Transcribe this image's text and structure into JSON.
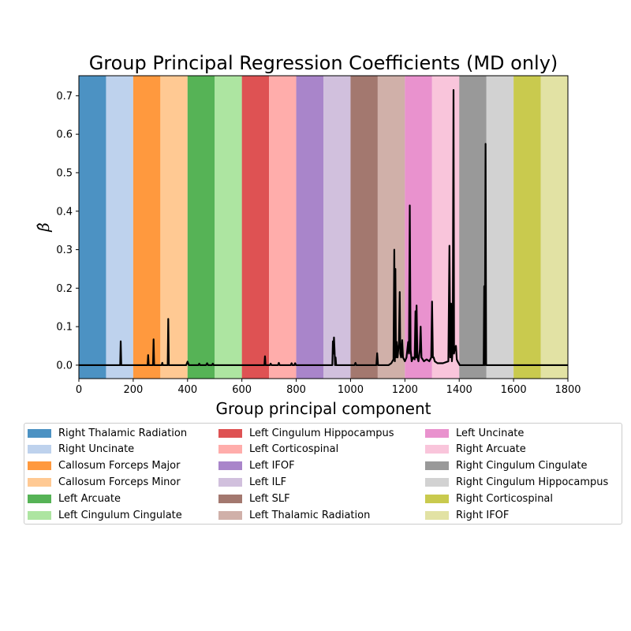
{
  "chart_data": {
    "type": "line",
    "title": "Group Principal Regression Coefficients (MD only)",
    "xlabel": "Group principal component",
    "ylabel": "β̂",
    "xlim": [
      0,
      1800
    ],
    "ylim": [
      -0.035,
      0.752
    ],
    "xticks": [
      "0",
      "200",
      "400",
      "600",
      "800",
      "1000",
      "1200",
      "1400",
      "1600",
      "1800"
    ],
    "yticks": [
      "0.0",
      "0.1",
      "0.2",
      "0.3",
      "0.4",
      "0.5",
      "0.6",
      "0.7"
    ],
    "grid": false,
    "legend_position": "bottom",
    "legend_columns": 3,
    "bands": [
      {
        "name": "Right Thalamic Radiation",
        "x0": 0,
        "x1": 100,
        "color": "#1f77b4",
        "alpha": 0.8
      },
      {
        "name": "Right Uncinate",
        "x0": 100,
        "x1": 200,
        "color": "#aec7e8",
        "alpha": 0.8
      },
      {
        "name": "Callosum Forceps Major",
        "x0": 200,
        "x1": 300,
        "color": "#ff7f0e",
        "alpha": 0.8
      },
      {
        "name": "Callosum Forceps Minor",
        "x0": 300,
        "x1": 400,
        "color": "#ffbb78",
        "alpha": 0.8
      },
      {
        "name": "Left Arcuate",
        "x0": 400,
        "x1": 500,
        "color": "#2ca02c",
        "alpha": 0.8
      },
      {
        "name": "Left Cingulum Cingulate",
        "x0": 500,
        "x1": 600,
        "color": "#98df8a",
        "alpha": 0.8
      },
      {
        "name": "Left Cingulum Hippocampus",
        "x0": 600,
        "x1": 700,
        "color": "#d62728",
        "alpha": 0.8
      },
      {
        "name": "Left Corticospinal",
        "x0": 700,
        "x1": 800,
        "color": "#ff9896",
        "alpha": 0.8
      },
      {
        "name": "Left IFOF",
        "x0": 800,
        "x1": 900,
        "color": "#9467bd",
        "alpha": 0.8
      },
      {
        "name": "Left ILF",
        "x0": 900,
        "x1": 1000,
        "color": "#c5b0d5",
        "alpha": 0.8
      },
      {
        "name": "Left SLF",
        "x0": 1000,
        "x1": 1100,
        "color": "#8c564b",
        "alpha": 0.8
      },
      {
        "name": "Left Thalamic Radiation",
        "x0": 1100,
        "x1": 1200,
        "color": "#c49c94",
        "alpha": 0.8
      },
      {
        "name": "Left Uncinate",
        "x0": 1200,
        "x1": 1300,
        "color": "#e377c2",
        "alpha": 0.8
      },
      {
        "name": "Right Arcuate",
        "x0": 1300,
        "x1": 1400,
        "color": "#f7b6d2",
        "alpha": 0.8
      },
      {
        "name": "Right Cingulum Cingulate",
        "x0": 1400,
        "x1": 1500,
        "color": "#7f7f7f",
        "alpha": 0.8
      },
      {
        "name": "Right Cingulum Hippocampus",
        "x0": 1500,
        "x1": 1600,
        "color": "#c7c7c7",
        "alpha": 0.8
      },
      {
        "name": "Right Corticospinal",
        "x0": 1600,
        "x1": 1700,
        "color": "#bcbd22",
        "alpha": 0.8
      },
      {
        "name": "Right IFOF",
        "x0": 1700,
        "x1": 1800,
        "color": "#dbdb8d",
        "alpha": 0.8
      }
    ],
    "series": [
      {
        "color": "#000000",
        "points": [
          [
            0,
            0.0
          ],
          [
            152,
            0.0
          ],
          [
            154,
            0.062
          ],
          [
            156,
            0.0
          ],
          [
            253,
            0.0
          ],
          [
            255,
            0.026
          ],
          [
            257,
            0.0
          ],
          [
            273,
            0.0
          ],
          [
            275,
            0.067
          ],
          [
            277,
            0.0
          ],
          [
            305,
            0.0
          ],
          [
            307,
            0.006
          ],
          [
            309,
            0.0
          ],
          [
            327,
            0.0
          ],
          [
            329,
            0.12
          ],
          [
            331,
            0.0
          ],
          [
            395,
            0.0
          ],
          [
            400,
            0.009
          ],
          [
            405,
            0.0
          ],
          [
            440,
            0.0
          ],
          [
            443,
            0.004
          ],
          [
            446,
            0.0
          ],
          [
            468,
            0.0
          ],
          [
            472,
            0.005
          ],
          [
            476,
            0.0
          ],
          [
            490,
            0.0
          ],
          [
            493,
            0.004
          ],
          [
            496,
            0.0
          ],
          [
            683,
            0.0
          ],
          [
            685,
            0.023
          ],
          [
            687,
            0.0
          ],
          [
            703,
            0.0
          ],
          [
            706,
            0.004
          ],
          [
            709,
            0.0
          ],
          [
            733,
            0.0
          ],
          [
            736,
            0.006
          ],
          [
            739,
            0.0
          ],
          [
            780,
            0.0
          ],
          [
            783,
            0.005
          ],
          [
            786,
            0.0
          ],
          [
            793,
            0.0
          ],
          [
            796,
            0.005
          ],
          [
            799,
            0.0
          ],
          [
            933,
            0.0
          ],
          [
            935,
            0.062
          ],
          [
            937,
            0.03
          ],
          [
            939,
            0.072
          ],
          [
            941,
            0.04
          ],
          [
            943,
            0.0
          ],
          [
            945,
            0.02
          ],
          [
            947,
            0.0
          ],
          [
            1015,
            0.0
          ],
          [
            1018,
            0.006
          ],
          [
            1021,
            0.0
          ],
          [
            1095,
            0.0
          ],
          [
            1098,
            0.031
          ],
          [
            1101,
            0.0
          ],
          [
            1140,
            0.0
          ],
          [
            1150,
            0.005
          ],
          [
            1158,
            0.015
          ],
          [
            1161,
            0.3
          ],
          [
            1163,
            0.01
          ],
          [
            1165,
            0.25
          ],
          [
            1167,
            0.02
          ],
          [
            1170,
            0.06
          ],
          [
            1173,
            0.02
          ],
          [
            1178,
            0.055
          ],
          [
            1181,
            0.19
          ],
          [
            1183,
            0.03
          ],
          [
            1186,
            0.02
          ],
          [
            1190,
            0.065
          ],
          [
            1193,
            0.02
          ],
          [
            1200,
            0.01
          ],
          [
            1206,
            0.02
          ],
          [
            1212,
            0.06
          ],
          [
            1215,
            0.03
          ],
          [
            1218,
            0.415
          ],
          [
            1221,
            0.04
          ],
          [
            1225,
            0.01
          ],
          [
            1230,
            0.02
          ],
          [
            1236,
            0.015
          ],
          [
            1239,
            0.14
          ],
          [
            1241,
            0.02
          ],
          [
            1243,
            0.155
          ],
          [
            1246,
            0.02
          ],
          [
            1250,
            0.01
          ],
          [
            1255,
            0.04
          ],
          [
            1258,
            0.1
          ],
          [
            1261,
            0.02
          ],
          [
            1270,
            0.01
          ],
          [
            1280,
            0.015
          ],
          [
            1290,
            0.01
          ],
          [
            1297,
            0.02
          ],
          [
            1300,
            0.165
          ],
          [
            1303,
            0.02
          ],
          [
            1306,
            0.02
          ],
          [
            1310,
            0.01
          ],
          [
            1320,
            0.005
          ],
          [
            1340,
            0.005
          ],
          [
            1360,
            0.01
          ],
          [
            1364,
            0.31
          ],
          [
            1367,
            0.02
          ],
          [
            1370,
            0.16
          ],
          [
            1373,
            0.01
          ],
          [
            1376,
            0.04
          ],
          [
            1379,
            0.715
          ],
          [
            1381,
            0.03
          ],
          [
            1384,
            0.045
          ],
          [
            1388,
            0.05
          ],
          [
            1391,
            0.015
          ],
          [
            1394,
            0.01
          ],
          [
            1398,
            0.005
          ],
          [
            1402,
            0.0
          ],
          [
            1490,
            0.0
          ],
          [
            1492,
            0.205
          ],
          [
            1494,
            0.0
          ],
          [
            1497,
            0.575
          ],
          [
            1499,
            0.0
          ],
          [
            1800,
            0.0
          ]
        ]
      }
    ]
  }
}
